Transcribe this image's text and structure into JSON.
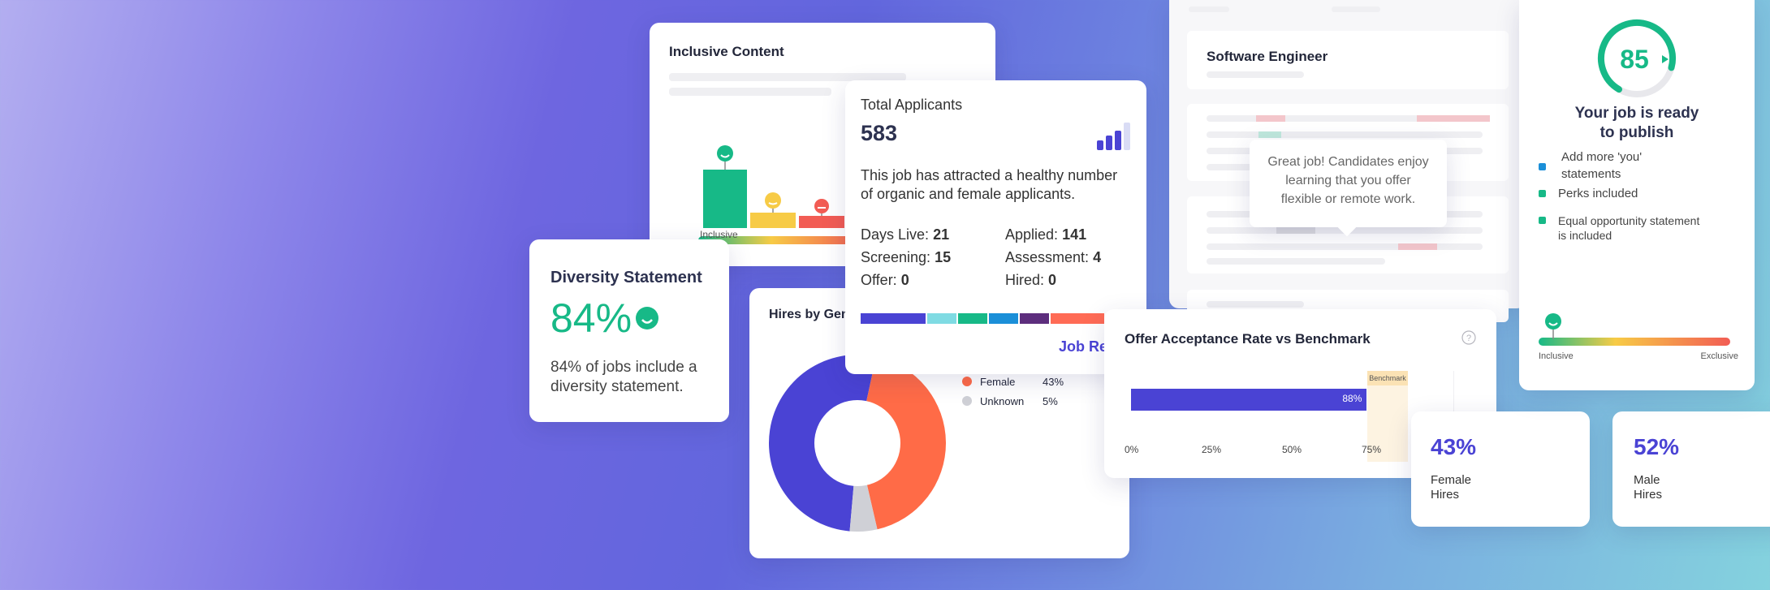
{
  "inclusive_content": {
    "title": "Inclusive Content",
    "scale_label": "Inclusive"
  },
  "diversity": {
    "title": "Diversity Statement",
    "percent": "84%",
    "description_line1": "84% of jobs include a",
    "description_line2": "diversity statement."
  },
  "hires_by_gender": {
    "title": "Hires by Gen",
    "legend": [
      {
        "label": "Female",
        "value": "43%",
        "color": "#ff6b47"
      },
      {
        "label": "Unknown",
        "value": "5%",
        "color": "#cfd0d6"
      }
    ],
    "donut": [
      {
        "label": "Male",
        "value": 52,
        "color": "#4a43d4"
      },
      {
        "label": "Female",
        "value": 43,
        "color": "#ff6b47"
      },
      {
        "label": "Unknown",
        "value": 5,
        "color": "#cfd0d6"
      }
    ]
  },
  "applicants": {
    "title": "Total Applicants",
    "count": "583",
    "summary_line1": "This job has attracted a healthy number",
    "summary_line2": "of organic and female applicants.",
    "stats": [
      {
        "label": "Days Live:",
        "value": "21"
      },
      {
        "label": "Applied:",
        "value": "141"
      },
      {
        "label": "Screening:",
        "value": "15"
      },
      {
        "label": "Assessment:",
        "value": "4"
      },
      {
        "label": "Offer:",
        "value": "0"
      },
      {
        "label": "Hired:",
        "value": "0"
      }
    ],
    "segment_colors": [
      "#4a43d4",
      "#7fdbe3",
      "#17b987",
      "#1b8fd8",
      "#5d2e7d",
      "#ff6b55"
    ],
    "link": "Job Re"
  },
  "software_engineer": {
    "title": "Software Engineer",
    "tooltip_line1": "Great job! Candidates enjoy",
    "tooltip_line2": "learning that you offer",
    "tooltip_line3": "flexible or remote work."
  },
  "offer": {
    "title": "Offer Acceptance Rate vs Benchmark",
    "help_icon": "question-circle-icon",
    "benchmark_label": "Benchmark",
    "bar_label": "88%",
    "bar_color": "#4a43d4",
    "benchmark_color": "#fbe2b4",
    "ticks": [
      "0%",
      "25%",
      "50%",
      "75%"
    ]
  },
  "chart_data": {
    "type": "bar",
    "title": "Offer Acceptance Rate vs Benchmark",
    "categories": [
      ""
    ],
    "values": [
      88
    ],
    "xlabel": "",
    "ylabel": "",
    "xlim": [
      0,
      100
    ],
    "annotations": [
      "Benchmark",
      "88%"
    ]
  },
  "female_hires": {
    "value": "43%",
    "label_line1": "Female",
    "label_line2": "Hires"
  },
  "male_hires": {
    "value": "52%",
    "label_line1": "Male",
    "label_line2": "Hires"
  },
  "score": {
    "value": "85",
    "progress": 0.85,
    "headline_line1": "Your job is ready",
    "headline_line2": "to publish",
    "checklist": [
      {
        "line1": "Add more 'you'",
        "line2": "statements",
        "color": "#1b8fd8"
      },
      {
        "line1": "Perks included",
        "line2": "",
        "color": "#17b987"
      },
      {
        "line1": "Equal opportunity statement",
        "line2": "is included",
        "color": "#17b987"
      }
    ],
    "scale_left": "Inclusive",
    "scale_right": "Exclusive"
  },
  "colors": {
    "accent": "#4a43d4",
    "green": "#17b987",
    "orange": "#ff6b47",
    "yellow": "#f7cb46",
    "red": "#f25c54"
  }
}
